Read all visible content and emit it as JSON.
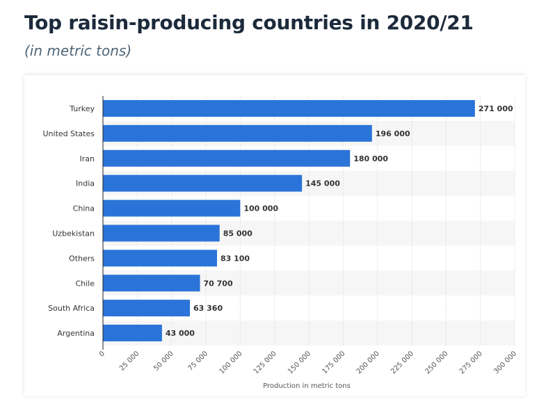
{
  "title": "Top raisin-producing countries in 2020/21",
  "subtitle": "(in metric tons)",
  "colors": {
    "bar": "#2a74d9",
    "stripe": "#f6f6f6",
    "grid": "#cfcfcf",
    "axis": "#222222",
    "label": "#333333",
    "value_label": "#333333"
  },
  "chart_data": {
    "type": "bar",
    "orientation": "horizontal",
    "categories": [
      "Turkey",
      "United States",
      "Iran",
      "India",
      "China",
      "Uzbekistan",
      "Others",
      "Chile",
      "South Africa",
      "Argentina"
    ],
    "values": [
      271000,
      196000,
      180000,
      145000,
      100000,
      85000,
      83100,
      70700,
      63360,
      43000
    ],
    "value_labels": [
      "271 000",
      "196 000",
      "180 000",
      "145 000",
      "100 000",
      "85 000",
      "83 100",
      "70 700",
      "63 360",
      "43 000"
    ],
    "xlabel": "Production in metric tons",
    "ylabel": "",
    "xlim": [
      0,
      300000
    ],
    "ticks": [
      0,
      25000,
      50000,
      75000,
      100000,
      125000,
      150000,
      175000,
      200000,
      225000,
      250000,
      275000,
      300000
    ],
    "tick_labels": [
      "0",
      "25 000",
      "50 000",
      "75 000",
      "100 000",
      "125 000",
      "150 000",
      "175 000",
      "200 000",
      "225 000",
      "250 000",
      "275 000",
      "300 000"
    ],
    "grid": true,
    "legend": "none"
  }
}
